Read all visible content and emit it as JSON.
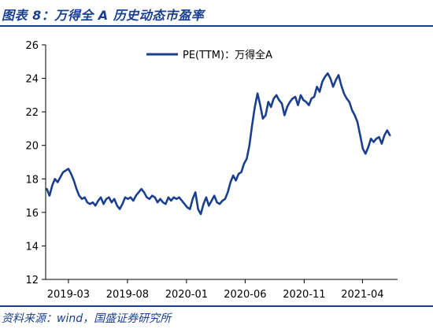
{
  "header": {
    "title": "图表 8：万得全 A 历史动态市盈率"
  },
  "footer": {
    "source": "资料来源：wind，国盛证券研究所"
  },
  "chart_data": {
    "type": "line",
    "title": "",
    "xlabel": "",
    "ylabel": "",
    "ylim": [
      12,
      26
    ],
    "yticks": [
      12,
      14,
      16,
      18,
      20,
      22,
      24,
      26
    ],
    "xlim": [
      "2019-01-01",
      "2021-07-01"
    ],
    "xticks": [
      "2019-03",
      "2019-08",
      "2020-01",
      "2020-06",
      "2020-11",
      "2021-04"
    ],
    "grid": false,
    "legend": "top-center",
    "series": [
      {
        "name": "PE(TTM)：万得全A",
        "color": "#1a3f8f",
        "x": [
          "2019-01-04",
          "2019-01-11",
          "2019-01-18",
          "2019-01-25",
          "2019-02-01",
          "2019-02-15",
          "2019-02-22",
          "2019-03-01",
          "2019-03-08",
          "2019-03-15",
          "2019-03-22",
          "2019-03-29",
          "2019-04-05",
          "2019-04-12",
          "2019-04-19",
          "2019-04-26",
          "2019-05-03",
          "2019-05-10",
          "2019-05-17",
          "2019-05-24",
          "2019-05-31",
          "2019-06-07",
          "2019-06-14",
          "2019-06-21",
          "2019-06-28",
          "2019-07-05",
          "2019-07-12",
          "2019-07-19",
          "2019-07-26",
          "2019-08-02",
          "2019-08-09",
          "2019-08-16",
          "2019-08-23",
          "2019-08-30",
          "2019-09-06",
          "2019-09-13",
          "2019-09-20",
          "2019-09-27",
          "2019-10-04",
          "2019-10-11",
          "2019-10-18",
          "2019-10-25",
          "2019-11-01",
          "2019-11-08",
          "2019-11-15",
          "2019-11-22",
          "2019-11-29",
          "2019-12-06",
          "2019-12-13",
          "2019-12-20",
          "2019-12-27",
          "2020-01-03",
          "2020-01-10",
          "2020-01-17",
          "2020-01-24",
          "2020-01-31",
          "2020-02-07",
          "2020-02-14",
          "2020-02-21",
          "2020-02-28",
          "2020-03-06",
          "2020-03-13",
          "2020-03-20",
          "2020-03-27",
          "2020-04-03",
          "2020-04-10",
          "2020-04-17",
          "2020-04-24",
          "2020-05-01",
          "2020-05-08",
          "2020-05-15",
          "2020-05-22",
          "2020-05-29",
          "2020-06-05",
          "2020-06-12",
          "2020-06-19",
          "2020-06-26",
          "2020-07-03",
          "2020-07-10",
          "2020-07-17",
          "2020-07-24",
          "2020-07-31",
          "2020-08-07",
          "2020-08-14",
          "2020-08-21",
          "2020-08-28",
          "2020-09-04",
          "2020-09-11",
          "2020-09-18",
          "2020-09-25",
          "2020-10-02",
          "2020-10-09",
          "2020-10-16",
          "2020-10-23",
          "2020-10-30",
          "2020-11-06",
          "2020-11-13",
          "2020-11-20",
          "2020-11-27",
          "2020-12-04",
          "2020-12-11",
          "2020-12-18",
          "2020-12-25",
          "2021-01-01",
          "2021-01-08",
          "2021-01-15",
          "2021-01-22",
          "2021-01-29",
          "2021-02-05",
          "2021-02-12",
          "2021-02-19",
          "2021-02-26",
          "2021-03-05",
          "2021-03-12",
          "2021-03-19",
          "2021-03-26",
          "2021-04-02",
          "2021-04-09",
          "2021-04-16",
          "2021-04-23",
          "2021-04-30",
          "2021-05-07",
          "2021-05-14",
          "2021-05-21",
          "2021-05-28",
          "2021-06-04",
          "2021-06-11"
        ],
        "values": [
          17.4,
          17.0,
          17.6,
          18.0,
          17.8,
          18.4,
          18.5,
          18.6,
          18.3,
          17.9,
          17.4,
          17.0,
          16.8,
          16.9,
          16.6,
          16.5,
          16.6,
          16.4,
          16.7,
          16.9,
          16.5,
          16.8,
          16.9,
          16.6,
          16.8,
          16.4,
          16.2,
          16.5,
          16.9,
          16.8,
          16.9,
          16.7,
          17.0,
          17.2,
          17.4,
          17.2,
          16.9,
          16.8,
          17.0,
          16.9,
          16.6,
          16.8,
          16.6,
          16.5,
          16.9,
          16.7,
          16.9,
          16.8,
          16.9,
          16.7,
          16.5,
          16.3,
          16.2,
          16.8,
          17.2,
          16.2,
          15.9,
          16.5,
          16.9,
          16.4,
          16.7,
          17.0,
          16.6,
          16.5,
          16.7,
          16.8,
          17.2,
          17.8,
          18.2,
          17.9,
          18.3,
          18.4,
          18.9,
          19.2,
          20.0,
          21.2,
          22.3,
          23.1,
          22.4,
          21.6,
          21.8,
          22.6,
          22.3,
          22.8,
          23.0,
          22.7,
          22.5,
          21.8,
          22.3,
          22.6,
          22.8,
          22.9,
          22.4,
          23.0,
          22.7,
          22.6,
          22.4,
          22.8,
          22.9,
          23.5,
          23.2,
          23.8,
          24.1,
          24.3,
          24.0,
          23.5,
          23.9,
          24.2,
          23.6,
          23.1,
          22.8,
          22.6,
          22.1,
          21.8,
          21.4,
          20.6,
          19.8,
          19.5,
          19.9,
          20.4,
          20.2,
          20.4,
          20.5,
          20.1,
          20.6,
          20.9,
          20.6
        ]
      }
    ]
  }
}
